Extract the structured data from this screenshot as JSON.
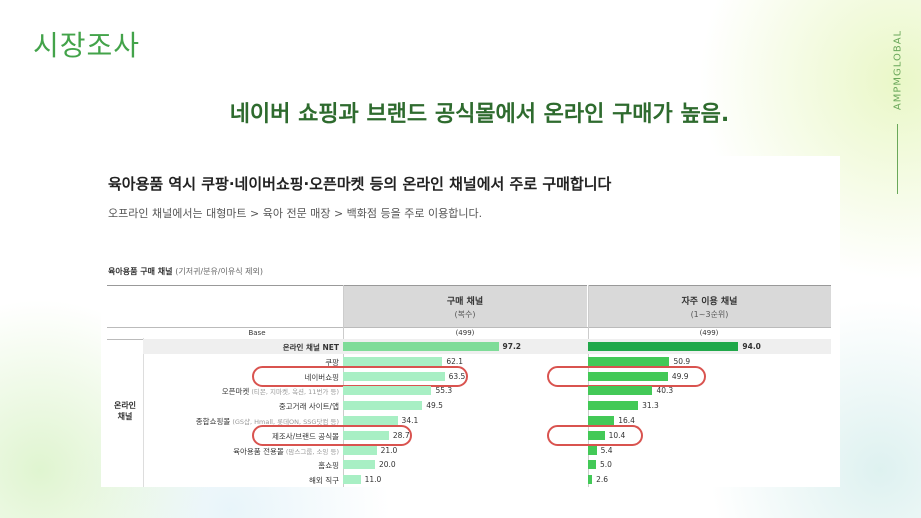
{
  "section_title": "시장조사",
  "headline": "네이버 쇼핑과 브랜드 공식몰에서 온라인 구매가 높음.",
  "brand": "AMPMGLOBAL",
  "panel": {
    "title": "육아용품 역시 쿠팡·네이버쇼핑·오픈마켓 등의 온라인 채널에서 주로 구매합니다",
    "subtitle": "오프라인 채널에서는 대형마트 > 육아 전문 매장 > 백화점 등을 주로 이용합니다.",
    "chart_title": "육아용품 구매 채널",
    "chart_note": "(기저귀/분유/이유식 제외)"
  },
  "chart_data": {
    "type": "table",
    "columns": [
      {
        "title": "구매 채널",
        "sub": "(복수)",
        "base": "(499)"
      },
      {
        "title": "자주 이용 채널",
        "sub": "(1~3순위)",
        "base": "(499)"
      }
    ],
    "base_label": "Base",
    "group_label": "온라인\n채널",
    "rows": [
      {
        "label": "온라인 채널 NET",
        "note": "",
        "v1": 97.2,
        "v2": 94.0,
        "v1_text": "97.2",
        "v2_text": "94.0",
        "net": true
      },
      {
        "label": "쿠팡",
        "note": "",
        "v1": 62.1,
        "v2": 50.9,
        "v1_text": "62.1",
        "v2_text": "50.9"
      },
      {
        "label": "네이버쇼핑",
        "note": "",
        "v1": 63.5,
        "v2": 49.9,
        "v1_text": "63.5",
        "v2_text": "49.9",
        "highlight": true
      },
      {
        "label": "오픈마켓",
        "note": "(티몬, 지마켓, 옥션, 11번가 등)",
        "v1": 55.3,
        "v2": 40.3,
        "v1_text": "55.3",
        "v2_text": "40.3"
      },
      {
        "label": "중고거래 사이트/앱",
        "note": "",
        "v1": 49.5,
        "v2": 31.3,
        "v1_text": "49.5",
        "v2_text": "31.3"
      },
      {
        "label": "종합쇼핑몰",
        "note": "(GS샵, Hmall, 롯데ON, SSG닷컴 등)",
        "v1": 34.1,
        "v2": 16.4,
        "v1_text": "34.1",
        "v2_text": "16.4"
      },
      {
        "label": "제조사/브랜드 공식몰",
        "note": "",
        "v1": 28.7,
        "v2": 10.4,
        "v1_text": "28.7",
        "v2_text": "10.4",
        "highlight": true
      },
      {
        "label": "육아용품 전용몰",
        "note": "(맘스그룹, 소잉 등)",
        "v1": 21.0,
        "v2": 5.4,
        "v1_text": "21.0",
        "v2_text": "5.4"
      },
      {
        "label": "홈쇼핑",
        "note": "",
        "v1": 20.0,
        "v2": 5.0,
        "v1_text": "20.0",
        "v2_text": "5.0"
      },
      {
        "label": "해외 직구",
        "note": "",
        "v1": 11.0,
        "v2": 2.6,
        "v1_text": "11.0",
        "v2_text": "2.6"
      }
    ],
    "colors": {
      "bar1": "#a8efc4",
      "bar2": "#43c957",
      "net_bar1": "#7edc98",
      "net_bar2": "#20a84a",
      "highlight": "#d9534f"
    }
  }
}
